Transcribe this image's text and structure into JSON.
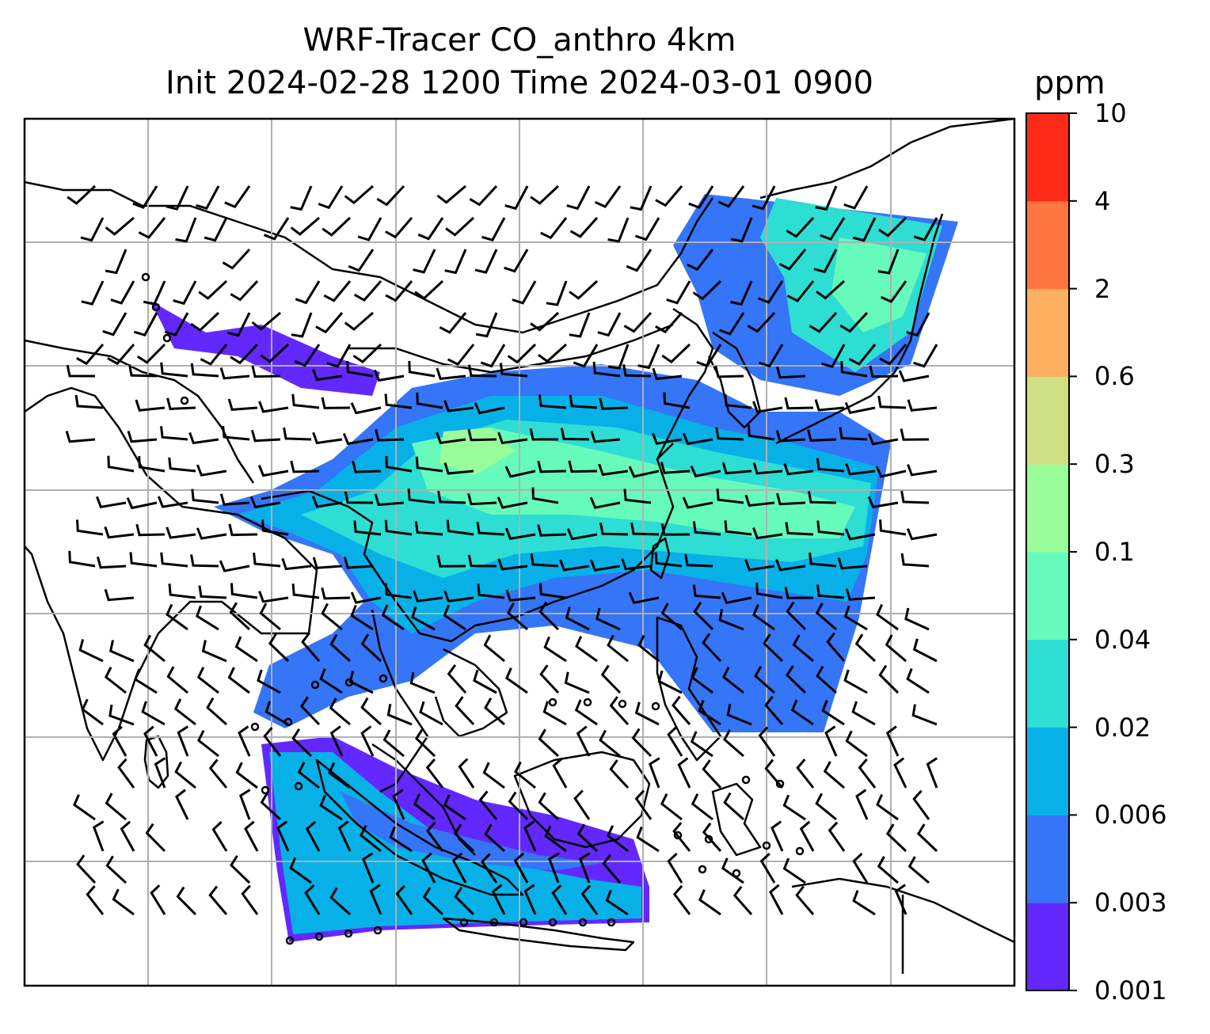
{
  "title": {
    "line1": "WRF-Tracer CO_anthro 4km",
    "line2": "Init 2024-02-28 1200 Time 2024-03-01 0900"
  },
  "colorbar": {
    "unit": "ppm",
    "ticks": [
      "0.001",
      "0.003",
      "0.006",
      "0.02",
      "0.04",
      "0.1",
      "0.3",
      "0.6",
      "2",
      "4",
      "10"
    ],
    "colors": [
      "#6328FF",
      "#3575F7",
      "#07B1E8",
      "#2EDDD3",
      "#66FBBB",
      "#99FD99",
      "#CFDF84",
      "#FDB160",
      "#FF7540",
      "#FF2A18"
    ]
  },
  "map": {
    "gridlines": true,
    "coastline_color": "#000000",
    "wind_barbs": true
  }
}
